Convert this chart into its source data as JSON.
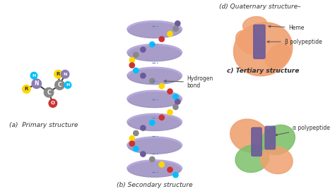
{
  "bg_color": "#ffffff",
  "labels": {
    "a": "(a)  Primary structure",
    "b": "(b) Secondary structure",
    "c": "c) Tertiary structure",
    "d": "(d) Quaternary structure–"
  },
  "annotations": {
    "hydrogen_bond": "Hydrogen\nbond",
    "heme": "Heme",
    "beta_poly": "β polypeptide",
    "alpha_poly": "α polypeptide"
  },
  "colors": {
    "purple": "#8B7CB3",
    "light_purple": "#B8A9D9",
    "helix_purple": "#9B8FC0",
    "helix_purple2": "#B8AADC",
    "orange": "#F0A070",
    "green": "#7DC06A",
    "gray": "#808080",
    "yellow": "#FFD700",
    "red": "#CC3333",
    "cyan": "#00BFFF",
    "dark_purple_node": "#6B5B9A",
    "dark_purple_rect": "#6B5B9A",
    "carbon_gray": "#888888",
    "nitrogen_purple": "#8B7CB3",
    "oxygen_red": "#CC3333",
    "hydrogen_cyan": "#00BFFF",
    "R_yellow": "#FFD700",
    "text_dark": "#333333",
    "label_color": "#333333",
    "bond_color": "#444444",
    "hbond_color": "#4488CC"
  }
}
